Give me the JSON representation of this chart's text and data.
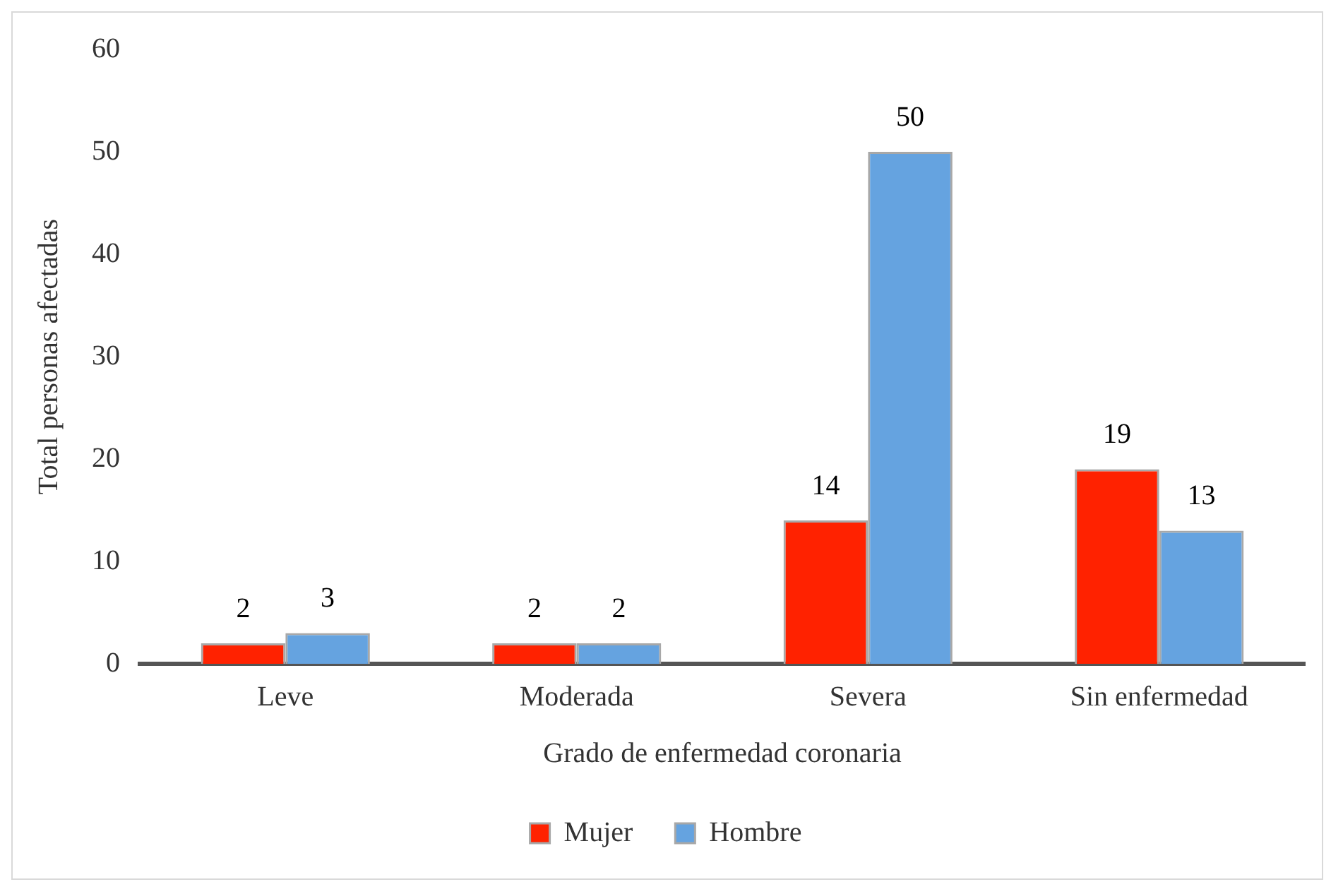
{
  "chart_data": {
    "type": "bar",
    "xlabel": "Grado de enfermedad coronaria",
    "ylabel": "Total personas afectadas",
    "categories": [
      "Leve",
      "Moderada",
      "Severa",
      "Sin enfermedad"
    ],
    "series": [
      {
        "name": "Mujer",
        "color": "#ff2200",
        "values": [
          2,
          2,
          14,
          19
        ]
      },
      {
        "name": "Hombre",
        "color": "#65a3e0",
        "values": [
          3,
          2,
          50,
          13
        ]
      }
    ],
    "ylim": [
      0,
      60
    ],
    "yticks": [
      0,
      10,
      20,
      30,
      40,
      50,
      60
    ],
    "grid": false,
    "legend": "bottom",
    "data_labels": true
  }
}
